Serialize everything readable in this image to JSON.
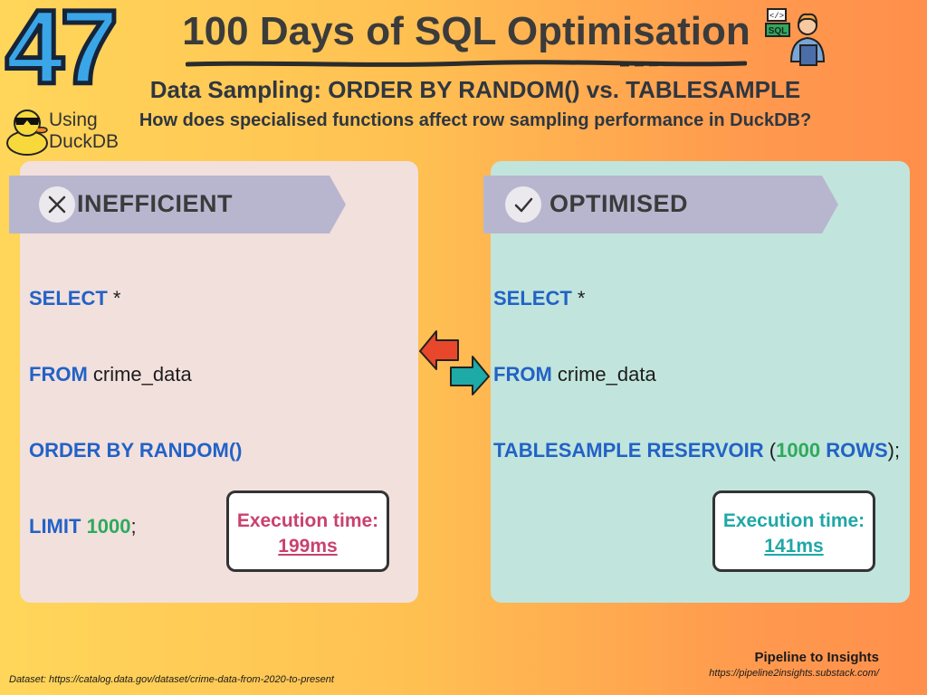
{
  "header": {
    "day_number": "47",
    "title": "100 Days of SQL Optimisation",
    "subtitle": "Data Sampling: ORDER BY RANDOM() vs. TABLESAMPLE",
    "question": "How does specialised functions affect row sampling performance in DuckDB?",
    "tool_line1": "Using",
    "tool_line2": "DuckDB"
  },
  "icons": {
    "duck": "duckdb-duck-icon",
    "developer": "developer-sql-icon",
    "inefficient": "x-circle-icon",
    "optimised": "check-circle-icon",
    "swap": "swap-arrows-icon"
  },
  "inefficient": {
    "heading": "INEFFICIENT",
    "code": {
      "l1_kw": "SELECT",
      "l1_rest": " *",
      "l2_kw": "FROM",
      "l2_rest": " crime_data",
      "l3_kw": "ORDER BY RANDOM()",
      "l4_kw": "LIMIT",
      "l4_num": "1000",
      "l4_end": ";"
    },
    "exec_label": "Execution time:",
    "exec_value": "199ms"
  },
  "optimised": {
    "heading": "OPTIMISED",
    "code": {
      "l1_kw": "SELECT",
      "l1_rest": " *",
      "l2_kw": "FROM",
      "l2_rest": " crime_data",
      "l3_kw": "TABLESAMPLE RESERVOIR",
      "l3_open": " (",
      "l3_num": "1000",
      "l3_kw2": "ROWS",
      "l3_end": ");"
    },
    "exec_label": "Execution time:",
    "exec_value": "141ms"
  },
  "footer": {
    "brand": "Pipeline to Insights",
    "url": "https://pipeline2insights.substack.com/",
    "dataset": "Dataset: https://catalog.data.gov/dataset/crime-data-from-2020-to-present"
  },
  "colors": {
    "keyword": "#2262c6",
    "number": "#2eaa5c",
    "inefficient_accent": "#c94170",
    "optimised_accent": "#20a7a7",
    "panel_left": "#f2e0dd",
    "panel_right": "#c1e5dc"
  }
}
